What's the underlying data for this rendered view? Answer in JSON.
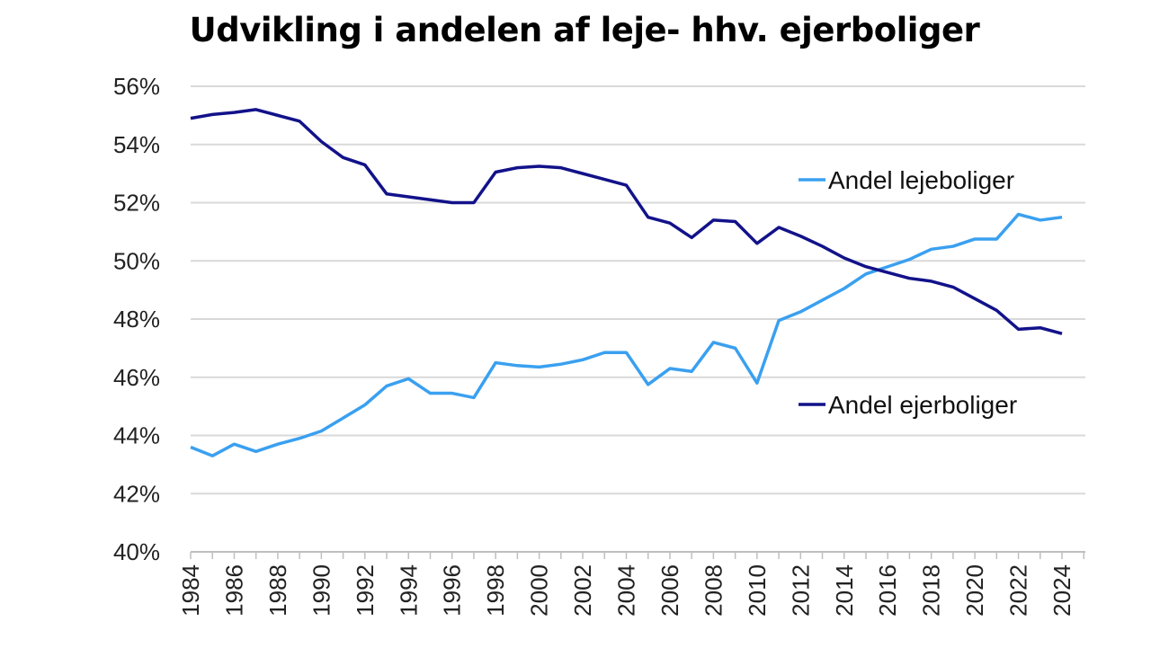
{
  "chart_data": {
    "type": "line",
    "title": "Udvikling i andelen af leje- hhv. ejerboliger",
    "xlabel": "",
    "ylabel": "",
    "ylim": [
      40,
      56
    ],
    "yticks": [
      "40%",
      "42%",
      "44%",
      "46%",
      "48%",
      "50%",
      "52%",
      "54%",
      "56%"
    ],
    "ytick_values": [
      40,
      42,
      44,
      46,
      48,
      50,
      52,
      54,
      56
    ],
    "xticks": [
      "1984",
      "1986",
      "1988",
      "1990",
      "1992",
      "1994",
      "1996",
      "1998",
      "2000",
      "2002",
      "2004",
      "2006",
      "2008",
      "2010",
      "2012",
      "2014",
      "2016",
      "2018",
      "2020",
      "2022",
      "2024"
    ],
    "grid": true,
    "legend": "inline-right",
    "x": [
      1984,
      1985,
      1986,
      1987,
      1988,
      1989,
      1990,
      1991,
      1992,
      1993,
      1994,
      1995,
      1996,
      1997,
      1998,
      1999,
      2000,
      2001,
      2002,
      2003,
      2004,
      2005,
      2006,
      2007,
      2008,
      2009,
      2010,
      2011,
      2012,
      2013,
      2014,
      2015,
      2016,
      2017,
      2018,
      2019,
      2020,
      2021,
      2022,
      2023,
      2024
    ],
    "series": [
      {
        "name": "Andel lejeboliger",
        "color": "#3aa0f0",
        "values": [
          43.6,
          43.3,
          43.7,
          43.45,
          43.7,
          43.9,
          44.15,
          44.6,
          45.05,
          45.7,
          45.95,
          45.45,
          45.45,
          45.3,
          46.5,
          46.4,
          46.35,
          46.45,
          46.6,
          46.85,
          46.85,
          45.75,
          46.3,
          46.2,
          47.2,
          47.0,
          45.8,
          47.95,
          48.25,
          48.65,
          49.05,
          49.55,
          49.8,
          50.05,
          50.4,
          50.5,
          50.75,
          50.75,
          51.6,
          51.4,
          51.5
        ]
      },
      {
        "name": "Andel ejerboliger",
        "color": "#12128a",
        "values": [
          54.9,
          55.03,
          55.1,
          55.2,
          55.0,
          54.8,
          54.1,
          53.55,
          53.3,
          52.3,
          52.2,
          52.1,
          52.0,
          52.0,
          53.05,
          53.2,
          53.25,
          53.2,
          53.0,
          52.8,
          52.6,
          51.5,
          51.3,
          50.8,
          51.4,
          51.35,
          50.6,
          51.15,
          50.85,
          50.5,
          50.1,
          49.8,
          49.6,
          49.4,
          49.3,
          49.1,
          48.7,
          48.3,
          47.65,
          47.7,
          47.5
        ]
      }
    ]
  }
}
